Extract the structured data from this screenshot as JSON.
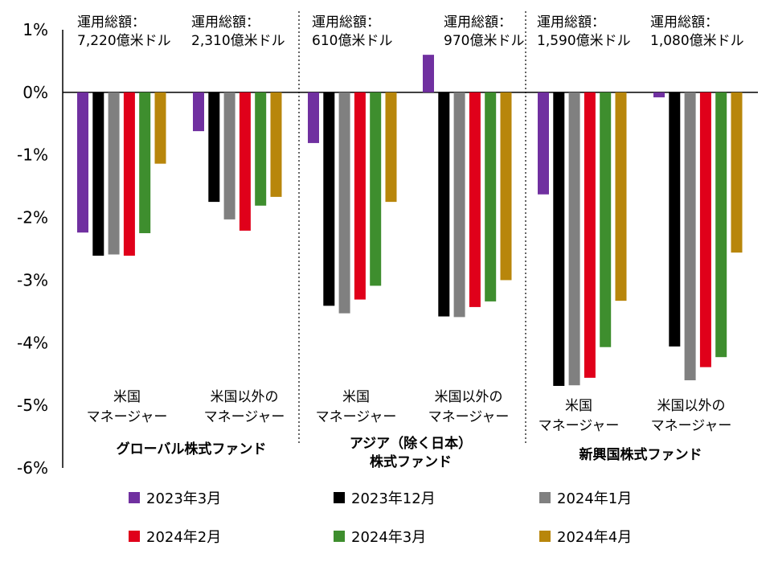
{
  "chart_data": {
    "type": "bar",
    "ylim": [
      -6,
      1
    ],
    "y_ticks": [
      "1%",
      "0%",
      "-1%",
      "-2%",
      "-3%",
      "-4%",
      "-5%",
      "-6%"
    ],
    "grid": false,
    "legend_position": "bottom",
    "series": [
      {
        "name": "2023年3月",
        "color": "#7030a0"
      },
      {
        "name": "2023年12月",
        "color": "#000000"
      },
      {
        "name": "2024年1月",
        "color": "#808080"
      },
      {
        "name": "2024年2月",
        "color": "#e0001a"
      },
      {
        "name": "2024年3月",
        "color": "#3e8e2e"
      },
      {
        "name": "2024年4月",
        "color": "#b8860b"
      }
    ],
    "groups": [
      {
        "label_lines": [
          "グローバル株式ファンド"
        ],
        "subgroups": [
          {
            "category_lines": [
              "米国",
              "マネージャー"
            ],
            "aum_lines": [
              "運用総額：",
              "7,220億米ドル"
            ],
            "values": [
              -2.24,
              -2.61,
              -2.59,
              -2.61,
              -2.25,
              -1.14
            ]
          },
          {
            "category_lines": [
              "米国以外の",
              "マネージャー"
            ],
            "aum_lines": [
              "運用総額：",
              "2,310億米ドル"
            ],
            "values": [
              -0.62,
              -1.75,
              -2.03,
              -2.21,
              -1.81,
              -1.67
            ]
          }
        ]
      },
      {
        "label_lines": [
          "アジア（除く日本）",
          "株式ファンド"
        ],
        "subgroups": [
          {
            "category_lines": [
              "米国",
              "マネージャー"
            ],
            "aum_lines": [
              "運用総額：",
              "610億米ドル"
            ],
            "values": [
              -0.81,
              -3.41,
              -3.53,
              -3.31,
              -3.09,
              -1.75
            ]
          },
          {
            "category_lines": [
              "米国以外の",
              "マネージャー"
            ],
            "aum_lines": [
              "運用総額：",
              "970億米ドル"
            ],
            "values": [
              0.6,
              -3.58,
              -3.59,
              -3.43,
              -3.34,
              -3.0
            ]
          }
        ]
      },
      {
        "label_lines": [
          "新興国株式ファンド"
        ],
        "subgroups": [
          {
            "category_lines": [
              "米国",
              "マネージャー"
            ],
            "aum_lines": [
              "運用総額：",
              "1,590億米ドル"
            ],
            "values": [
              -1.63,
              -4.69,
              -4.68,
              -4.56,
              -4.07,
              -3.33
            ]
          },
          {
            "category_lines": [
              "米国以外の",
              "マネージャー"
            ],
            "aum_lines": [
              "運用総額：",
              "1,080億米ドル"
            ],
            "values": [
              -0.08,
              -4.06,
              -4.6,
              -4.39,
              -4.23,
              -2.56
            ]
          }
        ]
      }
    ]
  }
}
